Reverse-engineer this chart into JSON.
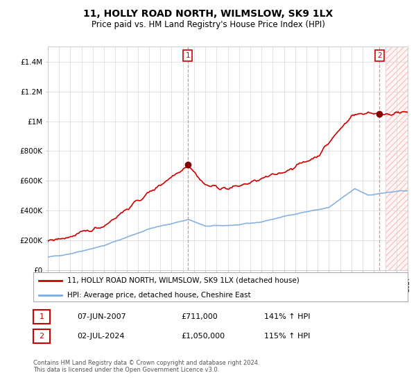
{
  "title": "11, HOLLY ROAD NORTH, WILMSLOW, SK9 1LX",
  "subtitle": "Price paid vs. HM Land Registry's House Price Index (HPI)",
  "legend_line1": "11, HOLLY ROAD NORTH, WILMSLOW, SK9 1LX (detached house)",
  "legend_line2": "HPI: Average price, detached house, Cheshire East",
  "footer": "Contains HM Land Registry data © Crown copyright and database right 2024.\nThis data is licensed under the Open Government Licence v3.0.",
  "transaction1_date": "07-JUN-2007",
  "transaction1_price": "£711,000",
  "transaction1_hpi": "141% ↑ HPI",
  "transaction2_date": "02-JUL-2024",
  "transaction2_price": "£1,050,000",
  "transaction2_hpi": "115% ↑ HPI",
  "hpi_color": "#7aaadd",
  "price_color": "#cc0000",
  "dashed_line_color": "#ee8888",
  "marker1_year": 2007.44,
  "marker1_price": 711000,
  "marker2_year": 2024.5,
  "marker2_price": 1050000,
  "ylim": [
    0,
    1500000
  ],
  "xlim_start": 1995,
  "xlim_end": 2027,
  "background_color": "#ffffff",
  "grid_color": "#dddddd",
  "yticks": [
    0,
    200000,
    400000,
    600000,
    800000,
    1000000,
    1200000,
    1400000
  ],
  "ytick_labels": [
    "£0",
    "£200K",
    "£400K",
    "£600K",
    "£800K",
    "£1M",
    "£1.2M",
    "£1.4M"
  ]
}
